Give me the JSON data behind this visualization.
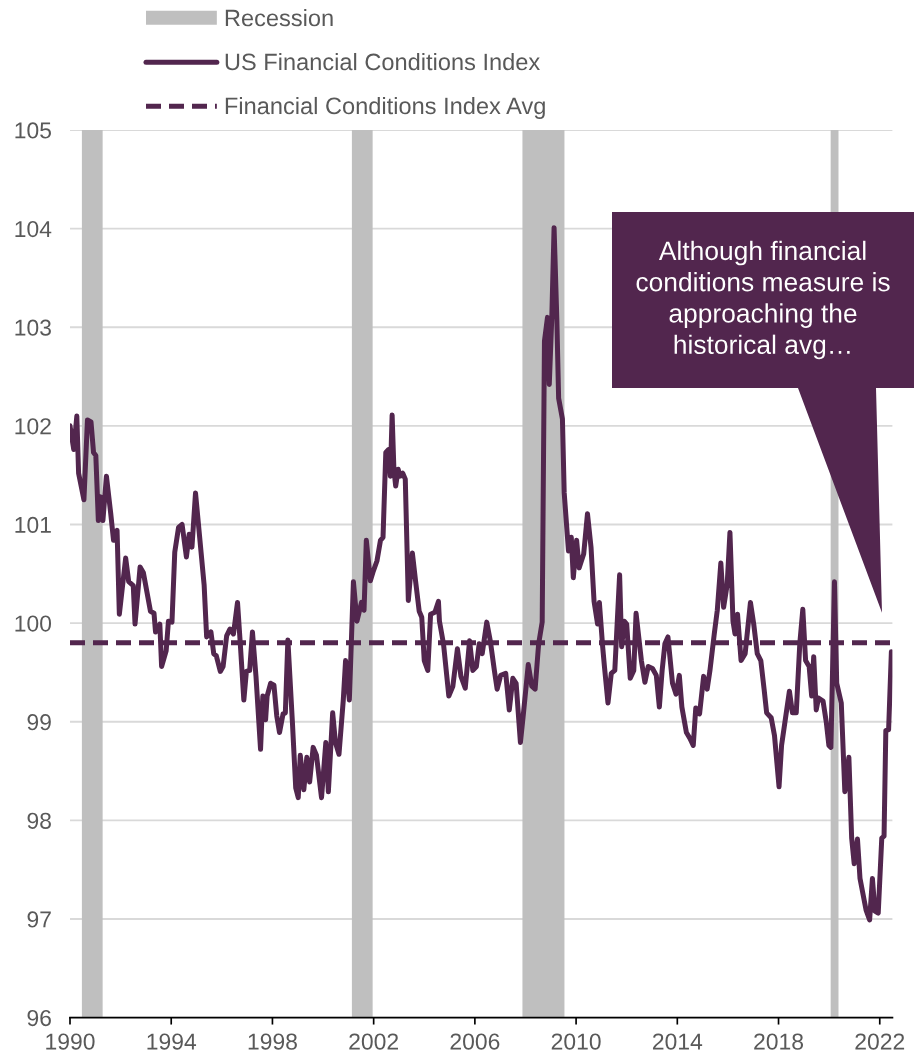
{
  "chart_data": {
    "type": "line",
    "x": [
      1990.0,
      1990.15,
      1990.27,
      1990.34,
      1990.55,
      1990.69,
      1990.83,
      1990.93,
      1991.02,
      1991.12,
      1991.22,
      1991.3,
      1991.44,
      1991.61,
      1991.72,
      1991.86,
      1991.95,
      1992.2,
      1992.32,
      1992.5,
      1992.57,
      1992.77,
      1992.9,
      1993.18,
      1993.32,
      1993.38,
      1993.55,
      1993.62,
      1993.8,
      1993.89,
      1994.03,
      1994.14,
      1994.29,
      1994.43,
      1994.6,
      1994.71,
      1994.82,
      1994.96,
      1995.3,
      1995.4,
      1995.57,
      1995.68,
      1995.78,
      1995.94,
      1996.05,
      1996.19,
      1996.32,
      1996.46,
      1996.62,
      1996.73,
      1996.87,
      1996.97,
      1997.1,
      1997.21,
      1997.35,
      1997.53,
      1997.62,
      1997.73,
      1997.79,
      1997.93,
      1998.06,
      1998.17,
      1998.28,
      1998.42,
      1998.51,
      1998.61,
      1998.79,
      1998.92,
      1999.02,
      1999.1,
      1999.24,
      1999.36,
      1999.47,
      1999.61,
      1999.74,
      1999.94,
      2000.11,
      2000.21,
      2000.38,
      2000.49,
      2000.63,
      2000.8,
      2000.89,
      2001.04,
      2001.2,
      2001.34,
      2001.52,
      2001.62,
      2001.71,
      2001.87,
      2001.99,
      2002.13,
      2002.27,
      2002.37,
      2002.48,
      2002.59,
      2002.66,
      2002.73,
      2002.8,
      2002.87,
      2002.97,
      2003.04,
      2003.15,
      2003.25,
      2003.37,
      2003.53,
      2003.66,
      2003.8,
      2003.9,
      2004.0,
      2004.14,
      2004.25,
      2004.42,
      2004.56,
      2004.6,
      2004.76,
      2004.97,
      2005.13,
      2005.31,
      2005.45,
      2005.62,
      2005.79,
      2005.92,
      2006.06,
      2006.17,
      2006.29,
      2006.47,
      2006.61,
      2006.77,
      2006.88,
      2007.02,
      2007.22,
      2007.36,
      2007.5,
      2007.63,
      2007.8,
      2007.91,
      2008.11,
      2008.25,
      2008.38,
      2008.52,
      2008.66,
      2008.75,
      2008.87,
      2008.94,
      2009.04,
      2009.13,
      2009.24,
      2009.31,
      2009.46,
      2009.53,
      2009.7,
      2009.81,
      2009.89,
      2010.02,
      2010.12,
      2010.3,
      2010.45,
      2010.59,
      2010.71,
      2010.85,
      2010.92,
      2011.05,
      2011.12,
      2011.26,
      2011.39,
      2011.53,
      2011.72,
      2011.8,
      2011.9,
      2012.0,
      2012.14,
      2012.28,
      2012.37,
      2012.58,
      2012.72,
      2012.85,
      2013.02,
      2013.17,
      2013.29,
      2013.4,
      2013.51,
      2013.63,
      2013.81,
      2013.95,
      2014.08,
      2014.18,
      2014.36,
      2014.5,
      2014.63,
      2014.73,
      2014.88,
      2015.04,
      2015.18,
      2015.29,
      2015.46,
      2015.58,
      2015.72,
      2015.83,
      2015.97,
      2016.08,
      2016.2,
      2016.28,
      2016.38,
      2016.52,
      2016.68,
      2016.89,
      2017.02,
      2017.16,
      2017.3,
      2017.43,
      2017.53,
      2017.71,
      2017.84,
      2018.02,
      2018.12,
      2018.25,
      2018.43,
      2018.55,
      2018.7,
      2018.84,
      2018.96,
      2019.07,
      2019.21,
      2019.31,
      2019.39,
      2019.49,
      2019.58,
      2019.76,
      2019.89,
      2019.99,
      2020.07,
      2020.21,
      2020.3,
      2020.48,
      2020.62,
      2020.78,
      2020.89,
      2020.99,
      2021.12,
      2021.22,
      2021.46,
      2021.6,
      2021.71,
      2021.81,
      2021.94,
      2022.08,
      2022.17,
      2022.24,
      2022.35,
      2022.46
    ],
    "series": [
      {
        "name": "US Financial Conditions Index",
        "color": "#52264e",
        "values": [
          102.0,
          101.76,
          102.1,
          101.52,
          101.25,
          102.06,
          102.04,
          101.73,
          101.7,
          101.04,
          101.28,
          101.04,
          101.49,
          101.11,
          100.84,
          100.94,
          100.09,
          100.66,
          100.42,
          100.38,
          99.99,
          100.57,
          100.51,
          100.12,
          100.1,
          99.91,
          99.99,
          99.56,
          99.72,
          100.02,
          100.01,
          100.72,
          100.97,
          101.0,
          100.67,
          100.9,
          100.77,
          101.32,
          100.39,
          99.86,
          99.91,
          99.69,
          99.67,
          99.51,
          99.56,
          99.87,
          99.94,
          99.89,
          100.21,
          99.79,
          99.22,
          99.51,
          99.52,
          99.91,
          99.46,
          98.72,
          99.26,
          99.02,
          99.26,
          99.39,
          99.37,
          99.06,
          98.89,
          99.08,
          99.09,
          99.83,
          98.99,
          98.33,
          98.23,
          98.66,
          98.31,
          98.64,
          98.39,
          98.74,
          98.66,
          98.23,
          98.79,
          98.29,
          99.09,
          98.79,
          98.67,
          99.22,
          99.62,
          99.22,
          100.42,
          100.02,
          100.21,
          100.13,
          100.84,
          100.43,
          100.53,
          100.63,
          100.84,
          100.87,
          101.73,
          101.76,
          101.49,
          102.11,
          101.56,
          101.39,
          101.56,
          101.49,
          101.52,
          101.46,
          100.23,
          100.71,
          100.42,
          100.12,
          100.06,
          99.62,
          99.52,
          100.09,
          100.11,
          100.22,
          100.02,
          99.79,
          99.26,
          99.36,
          99.74,
          99.46,
          99.34,
          99.82,
          99.52,
          99.56,
          99.79,
          99.69,
          100.01,
          99.82,
          99.52,
          99.33,
          99.47,
          99.49,
          99.12,
          99.44,
          99.39,
          98.79,
          99.06,
          99.58,
          99.36,
          99.33,
          99.79,
          100.01,
          102.86,
          103.1,
          102.42,
          103.1,
          104.01,
          103.07,
          102.28,
          102.07,
          101.32,
          100.73,
          100.87,
          100.46,
          100.84,
          100.56,
          100.7,
          101.11,
          100.77,
          100.22,
          99.99,
          100.21,
          99.76,
          99.56,
          99.19,
          99.49,
          99.52,
          100.49,
          99.76,
          100.02,
          99.99,
          99.44,
          99.52,
          100.1,
          99.62,
          99.4,
          99.56,
          99.54,
          99.47,
          99.15,
          99.52,
          99.79,
          99.86,
          99.39,
          99.28,
          99.47,
          99.15,
          98.89,
          98.83,
          98.76,
          99.14,
          99.08,
          99.46,
          99.33,
          99.52,
          99.89,
          100.13,
          100.61,
          100.16,
          100.39,
          100.92,
          100.02,
          99.89,
          100.09,
          99.62,
          99.69,
          100.21,
          99.99,
          99.69,
          99.62,
          99.33,
          99.09,
          99.04,
          98.86,
          98.34,
          98.76,
          98.99,
          99.31,
          99.09,
          99.09,
          99.79,
          100.14,
          99.62,
          99.56,
          99.26,
          99.66,
          99.12,
          99.24,
          99.21,
          98.99,
          98.76,
          98.74,
          100.42,
          99.39,
          99.19,
          98.29,
          98.64,
          97.82,
          97.56,
          97.81,
          97.41,
          97.09,
          96.99,
          97.41,
          97.08,
          97.06,
          97.82,
          97.84,
          98.91,
          98.92,
          99.71
        ]
      }
    ],
    "xlim": [
      1990,
      2022.5
    ],
    "xticks": [
      1990,
      1994,
      1998,
      2002,
      2006,
      2010,
      2014,
      2018,
      2022
    ],
    "ylim": [
      96,
      105
    ],
    "yticks": [
      96,
      97,
      98,
      99,
      100,
      101,
      102,
      103,
      104,
      105
    ],
    "grid": "y",
    "legend": "top",
    "line_style": "solid",
    "ref_lines": [
      {
        "axis": "y",
        "value": 99.8,
        "label": "Financial Conditions Index Avg",
        "color": "#52264e",
        "line_style": "dashed"
      }
    ],
    "bands": [
      {
        "axis": "x",
        "from": 1990.47,
        "to": 1991.29,
        "label": "Recession",
        "color": "#bfbfbf"
      },
      {
        "axis": "x",
        "from": 2001.14,
        "to": 2001.96,
        "color": "#bfbfbf"
      },
      {
        "axis": "x",
        "from": 2007.88,
        "to": 2009.54,
        "color": "#bfbfbf"
      },
      {
        "axis": "x",
        "from": 2020.06,
        "to": 2020.37,
        "color": "#bfbfbf"
      }
    ],
    "annotations": [
      "Although financial\nconditions measure is\napproaching the\nhistorical avg…"
    ]
  }
}
